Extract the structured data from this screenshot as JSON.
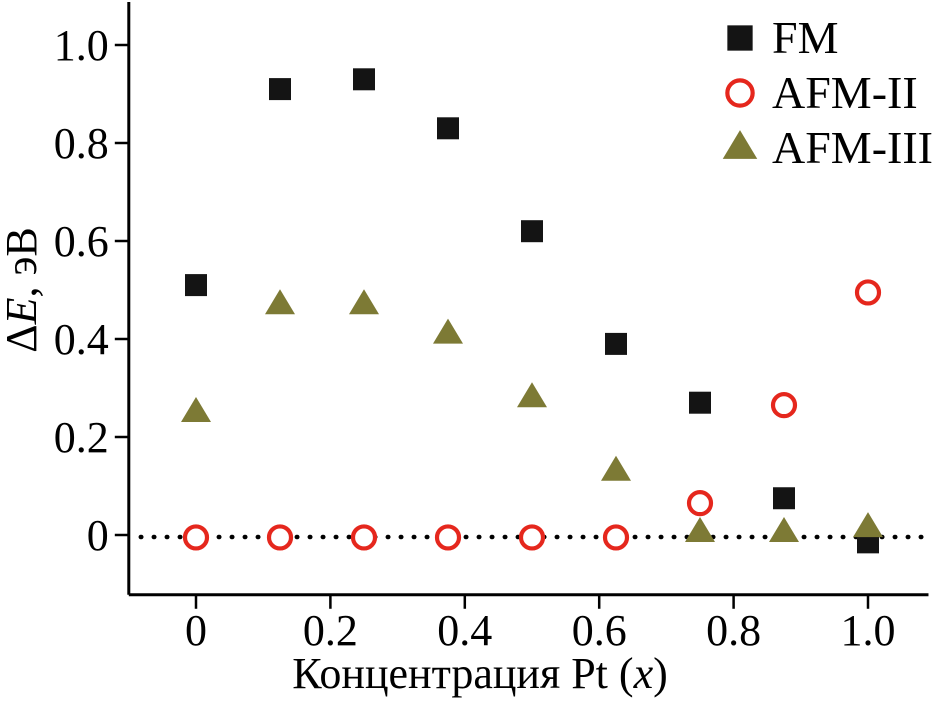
{
  "chart_data": {
    "type": "scatter",
    "title": "",
    "xlabel": "Концентрация Pt (x)",
    "ylabel": "ΔE, эВ",
    "xlabel_parts": [
      {
        "text": "Концентрация Pt (",
        "italic": false
      },
      {
        "text": "x",
        "italic": true
      },
      {
        "text": ")",
        "italic": false
      }
    ],
    "ylabel_parts": [
      {
        "text": "Δ",
        "italic": false
      },
      {
        "text": "E",
        "italic": true
      },
      {
        "text": ", эВ",
        "italic": false
      }
    ],
    "x": [
      0,
      0.125,
      0.25,
      0.375,
      0.5,
      0.625,
      0.75,
      0.875,
      1.0
    ],
    "series": [
      {
        "name": "FM",
        "marker": "square",
        "color": "#141414",
        "values": [
          0.51,
          0.91,
          0.93,
          0.83,
          0.62,
          0.39,
          0.27,
          0.075,
          -0.015
        ]
      },
      {
        "name": "AFM-II",
        "marker": "open-circle",
        "color": "#e5271d",
        "values": [
          -0.005,
          -0.005,
          -0.005,
          -0.005,
          -0.005,
          -0.005,
          0.065,
          0.265,
          0.495
        ]
      },
      {
        "name": "AFM-III",
        "marker": "triangle",
        "color": "#7d7a35",
        "values": [
          0.25,
          0.47,
          0.47,
          0.41,
          0.28,
          0.13,
          0.005,
          0.005,
          0.015
        ]
      }
    ],
    "x_ticks": [
      0,
      0.2,
      0.4,
      0.6,
      0.8,
      1.0
    ],
    "x_tick_labels": [
      "0",
      "0.2",
      "0.4",
      "0.6",
      "0.8",
      "1.0"
    ],
    "y_ticks": [
      0,
      0.2,
      0.4,
      0.6,
      0.8,
      1.0
    ],
    "y_tick_labels": [
      "0",
      "0.2",
      "0.4",
      "0.6",
      "0.8",
      "1.0"
    ],
    "xlim": [
      -0.1,
      1.09
    ],
    "ylim": [
      -0.122,
      1.09
    ],
    "zero_line": {
      "y": 0,
      "style": "dotted",
      "color": "#000000"
    },
    "grid": false,
    "legend": {
      "position": "top-right",
      "entries": [
        "FM",
        "AFM-II",
        "AFM-III"
      ]
    }
  }
}
